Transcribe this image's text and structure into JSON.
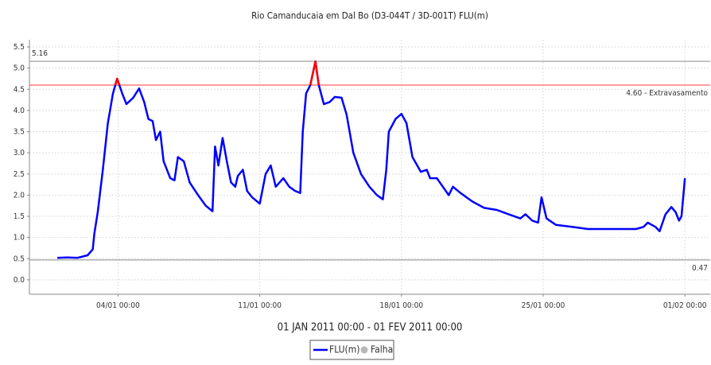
{
  "chart_data": {
    "type": "line",
    "title": "Rio Camanducaia em Dal Bo (D3-044T / 3D-001T) FLU(m)",
    "subtitle": "01 JAN 2011 00:00 - 01 FEV 2011 00:00",
    "xlim": [
      "30/12 15:00",
      "02/02 06:00"
    ],
    "xticks": [
      "04/01 00:00",
      "11/01 00:00",
      "18/01 00:00",
      "25/01 00:00",
      "01/02 00:00"
    ],
    "ylim": [
      -0.34,
      5.67
    ],
    "yticks": [
      {
        "value": 0,
        "label": "0.0"
      },
      0.5,
      {
        "value": 1,
        "label": "1.0"
      },
      1.5,
      {
        "value": 2,
        "label": "2.0"
      },
      2.5,
      {
        "value": 3,
        "label": "3.0"
      },
      3.5,
      {
        "value": 4,
        "label": "4.0"
      },
      4.5,
      {
        "value": 5,
        "label": "5.0"
      },
      5.5
    ],
    "grid": true,
    "thresholds": [
      {
        "value": 5.16,
        "label": "5.16",
        "color": "#a0a0a0",
        "label_side": "left",
        "highlight": false
      },
      {
        "value": 4.6,
        "label": "4.60 - Extravasamento",
        "color": "#ff6060",
        "label_side": "right",
        "highlight": true,
        "highlight_color": "#ff0000"
      },
      {
        "value": 0.47,
        "label": "0.47",
        "color": "#a0a0a0",
        "label_side": "right",
        "highlight": false
      }
    ],
    "x": [
      "01/01 00:00",
      "01/01 12:00",
      "02/01 00:00",
      "02/01 12:00",
      "02/01 18:00",
      "02/01 20:00",
      "03/01 00:00",
      "03/01 06:00",
      "03/01 12:00",
      "03/01 18:00",
      "03/01 23:00",
      "04/01 05:00",
      "04/01 10:00",
      "04/01 18:00",
      "05/01 01:00",
      "05/01 07:00",
      "05/01 12:00",
      "05/01 17:00",
      "05/01 21:00",
      "06/01 02:00",
      "06/01 06:00",
      "06/01 14:00",
      "06/01 19:00",
      "06/01 23:00",
      "07/01 06:00",
      "07/01 13:00",
      "07/01 23:00",
      "08/01 08:00",
      "08/01 16:00",
      "08/01 19:00",
      "08/01 23:00",
      "09/01 04:00",
      "09/01 09:00",
      "09/01 14:00",
      "09/01 19:00",
      "09/01 22:00",
      "10/01 04:00",
      "10/01 09:00",
      "10/01 15:00",
      "11/01 00:00",
      "11/01 07:00",
      "11/01 13:00",
      "11/01 19:00",
      "12/01 04:00",
      "12/01 11:00",
      "12/01 18:00",
      "13/01 00:00",
      "13/01 03:00",
      "13/01 07:00",
      "13/01 12:00",
      "13/01 18:00",
      "13/01 22:00",
      "14/01 04:00",
      "14/01 11:00",
      "14/01 17:00",
      "15/01 01:00",
      "15/01 07:00",
      "15/01 15:00",
      "16/01 00:00",
      "16/01 10:00",
      "16/01 19:00",
      "17/01 02:00",
      "17/01 06:00",
      "17/01 09:00",
      "17/01 17:00",
      "18/01 00:00",
      "18/01 06:00",
      "18/01 13:00",
      "18/01 23:00",
      "19/01 06:00",
      "19/01 10:00",
      "19/01 18:00",
      "20/01 01:00",
      "20/01 08:00",
      "20/01 13:00",
      "20/01 22:00",
      "21/01 12:00",
      "22/01 02:00",
      "22/01 17:00",
      "23/01 07:00",
      "23/01 21:00",
      "24/01 03:00",
      "24/01 11:00",
      "24/01 18:00",
      "24/01 22:00",
      "25/01 04:00",
      "25/01 15:00",
      "26/01 10:00",
      "27/01 05:00",
      "29/01 14:00",
      "29/01 23:00",
      "30/01 04:00",
      "30/01 13:00",
      "30/01 18:00",
      "31/01 01:00",
      "31/01 08:00",
      "31/01 13:00",
      "31/01 17:00",
      "31/01 20:00",
      "01/02 00:00"
    ],
    "series": [
      {
        "name": "FLU(m)",
        "color": "#0000ff",
        "values": [
          0.52,
          0.53,
          0.52,
          0.58,
          0.72,
          1.1,
          1.6,
          2.6,
          3.7,
          4.4,
          4.75,
          4.4,
          4.15,
          4.3,
          4.52,
          4.2,
          3.8,
          3.75,
          3.3,
          3.5,
          2.8,
          2.4,
          2.35,
          2.9,
          2.8,
          2.3,
          2.0,
          1.75,
          1.62,
          3.15,
          2.7,
          3.35,
          2.8,
          2.3,
          2.2,
          2.45,
          2.6,
          2.1,
          1.95,
          1.8,
          2.5,
          2.7,
          2.2,
          2.4,
          2.2,
          2.1,
          2.05,
          3.5,
          4.4,
          4.6,
          5.16,
          4.6,
          4.15,
          4.2,
          4.32,
          4.3,
          3.9,
          3.0,
          2.5,
          2.2,
          2.0,
          1.9,
          2.6,
          3.5,
          3.8,
          3.92,
          3.7,
          2.9,
          2.55,
          2.6,
          2.4,
          2.4,
          2.2,
          2.0,
          2.2,
          2.05,
          1.85,
          1.7,
          1.65,
          1.55,
          1.45,
          1.55,
          1.4,
          1.35,
          1.95,
          1.45,
          1.3,
          1.25,
          1.2,
          1.2,
          1.25,
          1.35,
          1.25,
          1.15,
          1.55,
          1.72,
          1.6,
          1.4,
          1.5,
          2.4
        ]
      }
    ],
    "failure_marker": {
      "name": "Falha",
      "color": "#b8b8b8"
    }
  }
}
